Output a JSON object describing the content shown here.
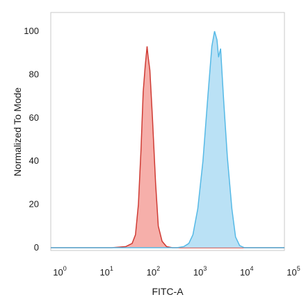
{
  "chart_data": {
    "type": "area",
    "title": "",
    "xlabel": "FITC-A",
    "ylabel": "Normalized To Mode",
    "x_scale": "log",
    "xlim": [
      1,
      100000
    ],
    "ylim": [
      0,
      100
    ],
    "x_ticks": [
      {
        "base": "10",
        "exp": "0",
        "value": 1
      },
      {
        "base": "10",
        "exp": "1",
        "value": 10
      },
      {
        "base": "10",
        "exp": "2",
        "value": 100
      },
      {
        "base": "10",
        "exp": "3",
        "value": 1000
      },
      {
        "base": "10",
        "exp": "4",
        "value": 10000
      },
      {
        "base": "10",
        "exp": "5",
        "value": 100000
      }
    ],
    "y_ticks": [
      0,
      20,
      40,
      60,
      80,
      100
    ],
    "grid": false,
    "series": [
      {
        "fill": "#f4a19b",
        "stroke": "#cf3b34",
        "points": [
          [
            1,
            0
          ],
          [
            20,
            0
          ],
          [
            40,
            0.5
          ],
          [
            55,
            2
          ],
          [
            65,
            6
          ],
          [
            75,
            20
          ],
          [
            85,
            45
          ],
          [
            95,
            72
          ],
          [
            105,
            84
          ],
          [
            115,
            93
          ],
          [
            120,
            89
          ],
          [
            132,
            82
          ],
          [
            150,
            60
          ],
          [
            175,
            30
          ],
          [
            200,
            10
          ],
          [
            240,
            3
          ],
          [
            300,
            0.5
          ],
          [
            400,
            0
          ],
          [
            100000,
            0
          ]
        ]
      },
      {
        "fill": "#aedcf3",
        "stroke": "#55b9e6",
        "points": [
          [
            1,
            0
          ],
          [
            500,
            0
          ],
          [
            700,
            0.5
          ],
          [
            900,
            2
          ],
          [
            1100,
            6
          ],
          [
            1400,
            18
          ],
          [
            1800,
            40
          ],
          [
            2300,
            70
          ],
          [
            2800,
            93
          ],
          [
            3200,
            100
          ],
          [
            3600,
            96
          ],
          [
            3900,
            88
          ],
          [
            4300,
            92
          ],
          [
            5000,
            68
          ],
          [
            6000,
            42
          ],
          [
            7500,
            18
          ],
          [
            9000,
            5
          ],
          [
            11000,
            1
          ],
          [
            14000,
            0
          ],
          [
            100000,
            0
          ]
        ]
      }
    ]
  }
}
